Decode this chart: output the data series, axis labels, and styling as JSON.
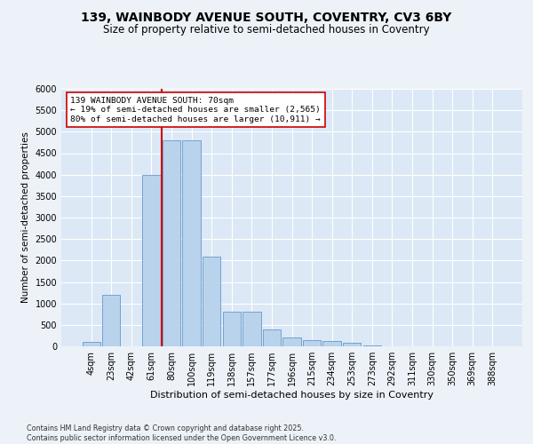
{
  "title_line1": "139, WAINBODY AVENUE SOUTH, COVENTRY, CV3 6BY",
  "title_line2": "Size of property relative to semi-detached houses in Coventry",
  "xlabel": "Distribution of semi-detached houses by size in Coventry",
  "ylabel": "Number of semi-detached properties",
  "categories": [
    "4sqm",
    "23sqm",
    "42sqm",
    "61sqm",
    "80sqm",
    "100sqm",
    "119sqm",
    "138sqm",
    "157sqm",
    "177sqm",
    "196sqm",
    "215sqm",
    "234sqm",
    "253sqm",
    "273sqm",
    "292sqm",
    "311sqm",
    "330sqm",
    "350sqm",
    "369sqm",
    "388sqm"
  ],
  "values": [
    100,
    1200,
    0,
    4000,
    4800,
    4800,
    2100,
    800,
    800,
    400,
    200,
    150,
    120,
    80,
    30,
    5,
    0,
    0,
    0,
    0,
    0
  ],
  "bar_color": "#b8d3eb",
  "bar_edge_color": "#6699cc",
  "vline_pos": 3.5,
  "vline_color": "#cc0000",
  "annotation_text": "139 WAINBODY AVENUE SOUTH: 70sqm\n← 19% of semi-detached houses are smaller (2,565)\n80% of semi-detached houses are larger (10,911) →",
  "annotation_box_facecolor": "#ffffff",
  "annotation_box_edgecolor": "#cc0000",
  "ylim": [
    0,
    6000
  ],
  "yticks": [
    0,
    500,
    1000,
    1500,
    2000,
    2500,
    3000,
    3500,
    4000,
    4500,
    5000,
    5500,
    6000
  ],
  "footer": "Contains HM Land Registry data © Crown copyright and database right 2025.\nContains public sector information licensed under the Open Government Licence v3.0.",
  "bg_color": "#edf2f8",
  "plot_bg_color": "#dce8f5",
  "title1_fontsize": 10,
  "title2_fontsize": 8.5,
  "xlabel_fontsize": 8,
  "ylabel_fontsize": 7.5,
  "tick_fontsize": 7,
  "annot_fontsize": 6.8,
  "footer_fontsize": 5.8
}
